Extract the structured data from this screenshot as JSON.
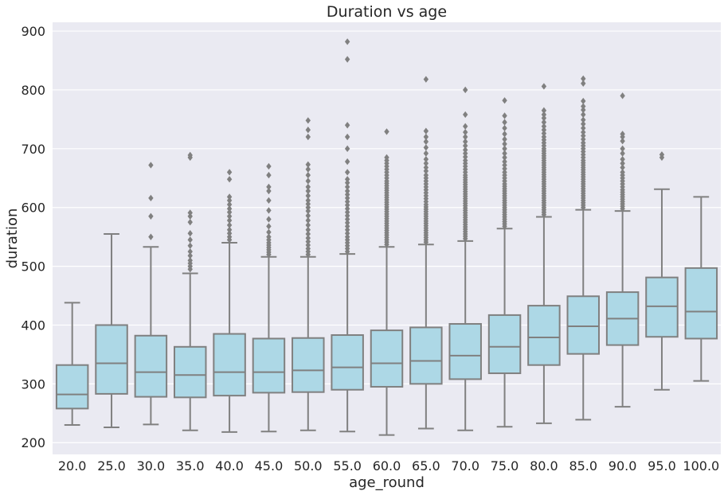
{
  "chart_data": {
    "type": "box",
    "title": "Duration vs age",
    "xlabel": "age_round",
    "ylabel": "duration",
    "ylim": [
      180,
      915
    ],
    "yticks": [
      200,
      300,
      400,
      500,
      600,
      700,
      800,
      900
    ],
    "grid": true,
    "box_color": "#add8e6",
    "line_color": "#808080",
    "plot_background": "#eaeaf2",
    "categories": [
      "20.0",
      "25.0",
      "30.0",
      "35.0",
      "40.0",
      "45.0",
      "50.0",
      "55.0",
      "60.0",
      "65.0",
      "70.0",
      "75.0",
      "80.0",
      "85.0",
      "90.0",
      "95.0",
      "100.0"
    ],
    "boxes": [
      {
        "whislo": 230,
        "q1": 258,
        "med": 282,
        "q3": 332,
        "whishi": 438,
        "fliers": []
      },
      {
        "whislo": 226,
        "q1": 283,
        "med": 335,
        "q3": 400,
        "whishi": 555,
        "fliers": []
      },
      {
        "whislo": 231,
        "q1": 278,
        "med": 320,
        "q3": 382,
        "whishi": 533,
        "fliers": [
          550,
          585,
          616,
          672
        ]
      },
      {
        "whislo": 221,
        "q1": 277,
        "med": 315,
        "q3": 363,
        "whishi": 488,
        "fliers": [
          495,
          500,
          505,
          510,
          518,
          525,
          535,
          545,
          556,
          575,
          585,
          591,
          685,
          689
        ]
      },
      {
        "whislo": 218,
        "q1": 280,
        "med": 320,
        "q3": 385,
        "whishi": 540,
        "fliers": [
          545,
          550,
          556,
          562,
          570,
          578,
          585,
          592,
          598,
          605,
          612,
          618,
          648,
          660
        ]
      },
      {
        "whislo": 219,
        "q1": 285,
        "med": 320,
        "q3": 377,
        "whishi": 516,
        "fliers": [
          520,
          524,
          528,
          532,
          536,
          540,
          545,
          550,
          558,
          568,
          580,
          595,
          612,
          628,
          635,
          655,
          670
        ]
      },
      {
        "whislo": 221,
        "q1": 286,
        "med": 323,
        "q3": 378,
        "whishi": 516,
        "fliers": [
          520,
          525,
          530,
          536,
          542,
          548,
          555,
          562,
          570,
          578,
          586,
          594,
          600,
          606,
          612,
          620,
          628,
          635,
          645,
          655,
          665,
          673,
          720,
          732,
          748
        ]
      },
      {
        "whislo": 219,
        "q1": 290,
        "med": 328,
        "q3": 383,
        "whishi": 521,
        "fliers": [
          525,
          530,
          535,
          540,
          545,
          550,
          556,
          562,
          568,
          574,
          580,
          586,
          592,
          598,
          604,
          610,
          616,
          622,
          628,
          635,
          642,
          648,
          660,
          678,
          700,
          720,
          740,
          852,
          882
        ]
      },
      {
        "whislo": 213,
        "q1": 295,
        "med": 335,
        "q3": 391,
        "whishi": 533,
        "fliers": [
          537,
          541,
          545,
          549,
          553,
          557,
          561,
          565,
          569,
          573,
          577,
          581,
          585,
          589,
          593,
          597,
          601,
          605,
          609,
          613,
          617,
          621,
          625,
          629,
          633,
          637,
          641,
          645,
          650,
          655,
          660,
          665,
          670,
          675,
          680,
          685,
          729
        ]
      },
      {
        "whislo": 224,
        "q1": 300,
        "med": 339,
        "q3": 396,
        "whishi": 537,
        "fliers": [
          541,
          545,
          549,
          553,
          557,
          561,
          565,
          569,
          573,
          577,
          581,
          585,
          589,
          593,
          597,
          601,
          605,
          610,
          615,
          620,
          625,
          630,
          635,
          640,
          645,
          650,
          655,
          662,
          668,
          675,
          682,
          692,
          702,
          712,
          720,
          730,
          818
        ]
      },
      {
        "whislo": 221,
        "q1": 308,
        "med": 348,
        "q3": 402,
        "whishi": 543,
        "fliers": [
          547,
          551,
          555,
          559,
          563,
          567,
          571,
          575,
          579,
          583,
          587,
          591,
          595,
          599,
          603,
          607,
          611,
          615,
          619,
          623,
          627,
          631,
          635,
          639,
          643,
          647,
          651,
          655,
          660,
          665,
          670,
          675,
          680,
          686,
          692,
          698,
          705,
          712,
          720,
          728,
          738,
          758,
          800
        ]
      },
      {
        "whislo": 227,
        "q1": 318,
        "med": 363,
        "q3": 417,
        "whishi": 564,
        "fliers": [
          568,
          572,
          576,
          580,
          584,
          588,
          592,
          596,
          600,
          604,
          608,
          612,
          616,
          620,
          624,
          628,
          632,
          636,
          640,
          645,
          650,
          655,
          660,
          666,
          672,
          678,
          685,
          692,
          700,
          708,
          716,
          725,
          735,
          745,
          756,
          782
        ]
      },
      {
        "whislo": 233,
        "q1": 332,
        "med": 379,
        "q3": 433,
        "whishi": 584,
        "fliers": [
          588,
          592,
          596,
          600,
          604,
          608,
          612,
          616,
          620,
          624,
          628,
          632,
          636,
          640,
          644,
          648,
          652,
          656,
          660,
          664,
          668,
          672,
          676,
          680,
          684,
          688,
          692,
          696,
          700,
          705,
          710,
          715,
          720,
          726,
          732,
          738,
          745,
          752,
          758,
          765,
          806
        ]
      },
      {
        "whislo": 239,
        "q1": 351,
        "med": 398,
        "q3": 449,
        "whishi": 596,
        "fliers": [
          600,
          604,
          608,
          612,
          616,
          620,
          624,
          628,
          632,
          636,
          640,
          644,
          648,
          652,
          656,
          660,
          664,
          668,
          672,
          676,
          680,
          685,
          690,
          695,
          700,
          705,
          710,
          716,
          722,
          728,
          735,
          742,
          749,
          758,
          766,
          772,
          781,
          811,
          819
        ]
      },
      {
        "whislo": 261,
        "q1": 366,
        "med": 411,
        "q3": 456,
        "whishi": 594,
        "fliers": [
          598,
          602,
          606,
          610,
          614,
          618,
          622,
          626,
          630,
          635,
          640,
          645,
          650,
          655,
          660,
          668,
          675,
          682,
          692,
          700,
          713,
          720,
          725,
          790
        ]
      },
      {
        "whislo": 290,
        "q1": 380,
        "med": 432,
        "q3": 481,
        "whishi": 631,
        "fliers": [
          685,
          690
        ]
      },
      {
        "whislo": 305,
        "q1": 377,
        "med": 423,
        "q3": 497,
        "whishi": 618,
        "fliers": []
      }
    ]
  }
}
